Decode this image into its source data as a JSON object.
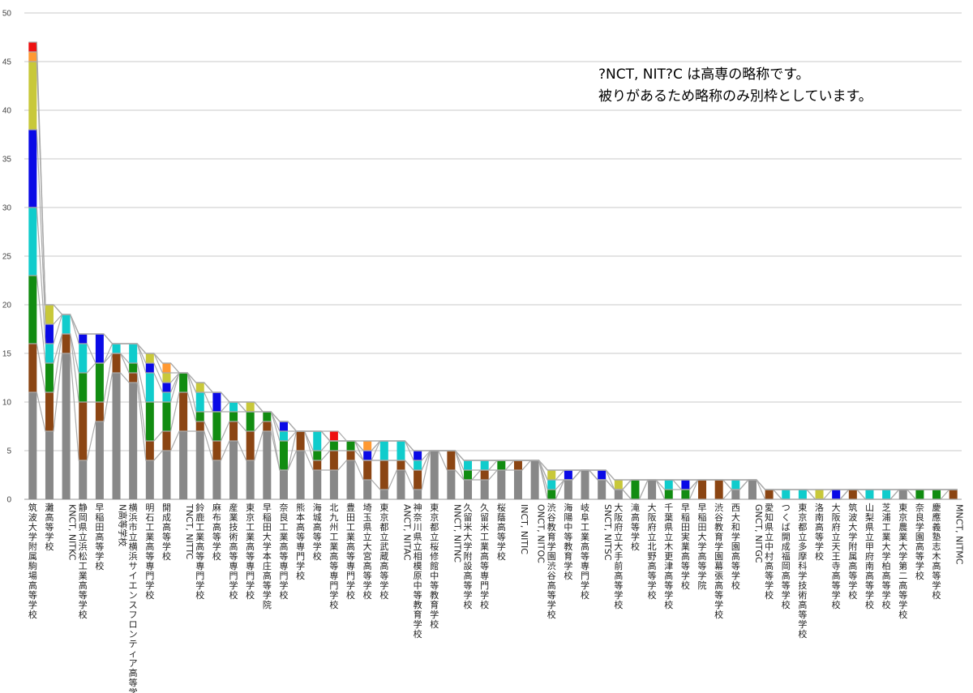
{
  "chart_data": {
    "type": "bar",
    "stacked": true,
    "ylim": [
      0,
      50
    ],
    "yticks": [
      0,
      5,
      10,
      15,
      20,
      25,
      30,
      35,
      40,
      45,
      50
    ],
    "grid": true,
    "annotation": [
      "?NCT, NIT?C は高専の略称です。",
      "被りがあるため略称のみ別枠としています。"
    ],
    "colors": {
      "gray": "#888888",
      "brown": "#8B4513",
      "green": "#118c11",
      "cyan": "#10cccc",
      "blue": "#0a0ae6",
      "olive": "#c8c83a",
      "orange": "#ff9933",
      "red": "#ee1111"
    },
    "stack_order": [
      "gray",
      "brown",
      "green",
      "cyan",
      "blue",
      "olive",
      "orange",
      "red"
    ],
    "categories": [
      "筑波大学附属駒場高等学校",
      "灘高等学校",
      "KNCT, NITKC",
      "静岡県立浜松工業高等学校",
      "早稲田高等学校",
      "N高等学校",
      "横浜市立横浜サイエンスフロンティア高等学校",
      "明石工業高等専門学校",
      "開成高等学校",
      "TNCT, NITTC",
      "鈴鹿工業高等専門学校",
      "麻布高等学校",
      "産業技術高等専門学校",
      "東京工業高等専門学校",
      "早稲田大学本庄高等学院",
      "奈良工業高等専門学校",
      "熊本高等専門学校",
      "海城高等学校",
      "北九州工業高等専門学校",
      "豊田工業高等専門学校",
      "埼玉県立大宮高等学校",
      "東京都立武蔵高等学校",
      "ANCT, NITAC",
      "神奈川県立相模原中等教育学校",
      "東京都立桜修館中等教育学校",
      "NNCT, NITNC",
      "久留米大学附設高等学校",
      "久留米工業高等専門学校",
      "桜蔭高等学校",
      "INCT, NITIC",
      "ONCT, NITOC",
      "渋谷教育学園渋谷高等学校",
      "海陽中等教育学校",
      "岐阜工業高等専門学校",
      "SNCT, NITSC",
      "大阪府立大手前高等学校",
      "滝高等学校",
      "大阪府立北野高等学校",
      "千葉県立木更津高等学校",
      "早稲田実業高等学校",
      "早稲田大学高等学院",
      "渋谷教育学園幕張高等学校",
      "西大和学園高等学校",
      "GNCT, NITGC",
      "愛知県立中村高等学校",
      "つくば開成福岡高等学校",
      "東京都立多摩科学技術高等学校",
      "洛南高等学校",
      "大阪府立天王寺高等学校",
      "筑波大学附属高等学校",
      "山梨県立甲府南高等学校",
      "芝浦工業大学柏高等学校",
      "東京農業大学第二高等学校",
      "奈良学園高等学校",
      "慶應義塾志木高等学校",
      "MNCT, NITMC"
    ],
    "series": [
      {
        "color": "gray",
        "values": [
          11,
          7,
          15,
          4,
          8,
          13,
          12,
          4,
          5,
          7,
          7,
          4,
          6,
          4,
          7,
          3,
          5,
          3,
          3,
          4,
          2,
          1,
          3,
          1,
          5,
          3,
          2,
          2,
          3,
          3,
          4,
          0,
          2,
          3,
          2,
          1,
          0,
          2,
          0,
          0,
          0,
          0,
          1,
          2,
          0,
          0,
          0,
          0,
          0,
          0,
          0,
          0,
          1,
          0,
          0,
          0
        ]
      },
      {
        "color": "brown",
        "values": [
          5,
          4,
          2,
          6,
          2,
          2,
          1,
          2,
          2,
          4,
          1,
          2,
          2,
          3,
          1,
          0,
          2,
          1,
          2,
          1,
          2,
          3,
          1,
          2,
          0,
          2,
          0,
          1,
          0,
          1,
          0,
          0,
          0,
          0,
          0,
          0,
          0,
          0,
          0,
          0,
          2,
          2,
          0,
          0,
          1,
          0,
          0,
          0,
          0,
          1,
          0,
          0,
          0,
          0,
          0,
          1
        ]
      },
      {
        "color": "green",
        "values": [
          7,
          3,
          0,
          3,
          4,
          0,
          1,
          4,
          3,
          2,
          1,
          3,
          1,
          2,
          1,
          3,
          0,
          1,
          1,
          1,
          0,
          0,
          0,
          0,
          0,
          0,
          1,
          0,
          1,
          0,
          0,
          1,
          0,
          0,
          0,
          0,
          2,
          0,
          1,
          1,
          0,
          0,
          0,
          0,
          0,
          0,
          0,
          0,
          0,
          0,
          0,
          0,
          0,
          1,
          1,
          0
        ]
      },
      {
        "color": "cyan",
        "values": [
          7,
          2,
          2,
          3,
          0,
          1,
          2,
          3,
          1,
          0,
          2,
          0,
          1,
          0,
          0,
          1,
          0,
          2,
          0,
          0,
          0,
          2,
          2,
          1,
          0,
          0,
          1,
          1,
          0,
          0,
          0,
          1,
          0,
          0,
          0,
          0,
          0,
          0,
          1,
          0,
          0,
          0,
          1,
          0,
          0,
          1,
          1,
          0,
          0,
          0,
          1,
          1,
          0,
          0,
          0,
          0
        ]
      },
      {
        "color": "blue",
        "values": [
          8,
          2,
          0,
          1,
          3,
          0,
          0,
          1,
          1,
          0,
          0,
          2,
          0,
          0,
          0,
          1,
          0,
          0,
          0,
          0,
          1,
          0,
          0,
          1,
          0,
          0,
          0,
          0,
          0,
          0,
          0,
          0,
          1,
          0,
          1,
          0,
          0,
          0,
          0,
          1,
          0,
          0,
          0,
          0,
          0,
          0,
          0,
          0,
          1,
          0,
          0,
          0,
          0,
          0,
          0,
          0
        ]
      },
      {
        "color": "olive",
        "values": [
          7,
          2,
          0,
          0,
          0,
          0,
          0,
          1,
          1,
          0,
          1,
          0,
          0,
          1,
          0,
          0,
          0,
          0,
          0,
          0,
          0,
          0,
          0,
          0,
          0,
          0,
          0,
          0,
          0,
          0,
          0,
          1,
          0,
          0,
          0,
          1,
          0,
          0,
          0,
          0,
          0,
          0,
          0,
          0,
          0,
          0,
          0,
          1,
          0,
          0,
          0,
          0,
          0,
          0,
          0,
          0
        ]
      },
      {
        "color": "orange",
        "values": [
          1,
          0,
          0,
          0,
          0,
          0,
          0,
          0,
          1,
          0,
          0,
          0,
          0,
          0,
          0,
          0,
          0,
          0,
          0,
          0,
          1,
          0,
          0,
          0,
          0,
          0,
          0,
          0,
          0,
          0,
          0,
          0,
          0,
          0,
          0,
          0,
          0,
          0,
          0,
          0,
          0,
          0,
          0,
          0,
          0,
          0,
          0,
          0,
          0,
          0,
          0,
          0,
          0,
          0,
          0,
          0
        ]
      },
      {
        "color": "red",
        "values": [
          1,
          0,
          0,
          0,
          0,
          0,
          0,
          0,
          0,
          0,
          0,
          0,
          0,
          0,
          0,
          0,
          0,
          0,
          1,
          0,
          0,
          0,
          0,
          0,
          0,
          0,
          0,
          0,
          0,
          0,
          0,
          0,
          0,
          0,
          0,
          0,
          0,
          0,
          0,
          0,
          0,
          0,
          0,
          0,
          0,
          0,
          0,
          0,
          0,
          0,
          0,
          0,
          0,
          0,
          0,
          0
        ]
      }
    ]
  }
}
